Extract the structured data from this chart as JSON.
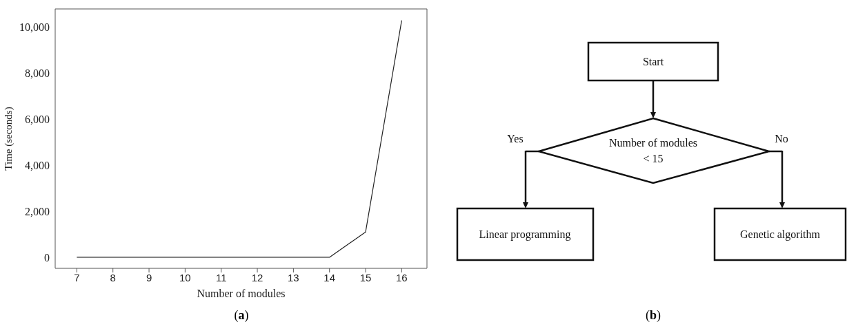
{
  "chart_data": [
    {
      "type": "line",
      "title": "(a)",
      "xlabel": "Number of modules",
      "ylabel": "Time (seconds)",
      "x": [
        7,
        8,
        9,
        10,
        11,
        12,
        13,
        14,
        15,
        16
      ],
      "series": [
        {
          "color": "#222222",
          "values": [
            0,
            0,
            0,
            0,
            0,
            0,
            0,
            0,
            1100,
            10300
          ]
        }
      ],
      "xlim": [
        6.4,
        16.7
      ],
      "xticks": [
        7,
        8,
        9,
        10,
        11,
        12,
        13,
        14,
        15,
        16
      ],
      "ylim": [
        -480,
        10800
      ],
      "yticks": [
        {
          "value": 0,
          "label": "0"
        },
        {
          "value": 2000,
          "label": "2,000"
        },
        {
          "value": 4000,
          "label": "4,000"
        },
        {
          "value": 6000,
          "label": "6,000"
        },
        {
          "value": 8000,
          "label": "8,000"
        },
        {
          "value": 10000,
          "label": "10,000"
        }
      ],
      "grid": false,
      "legend": false,
      "marker": "none"
    },
    {
      "type": "other",
      "title": "(b)",
      "annotations": [
        "Start",
        "Number of modules < 15",
        "Yes",
        "No",
        "Linear programming",
        "Genetic algorithm"
      ]
    }
  ]
}
